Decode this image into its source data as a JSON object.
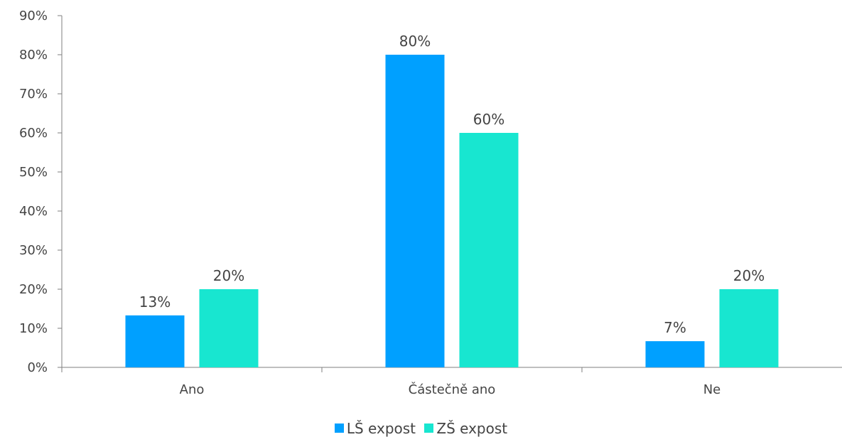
{
  "chart_data": {
    "type": "bar",
    "categories": [
      "Ano",
      "Částečně ano",
      "Ne"
    ],
    "series": [
      {
        "name": "LŠ expost",
        "values": [
          13.3,
          80,
          6.7
        ],
        "labels": [
          "13%",
          "80%",
          "7%"
        ],
        "color": "#00a0ff"
      },
      {
        "name": "ZŠ expost",
        "values": [
          20,
          60,
          20
        ],
        "labels": [
          "20%",
          "60%",
          "20%"
        ],
        "color": "#18e6d0"
      }
    ],
    "ylim": [
      0,
      90
    ],
    "yticks": [
      "0%",
      "10%",
      "20%",
      "30%",
      "40%",
      "50%",
      "60%",
      "70%",
      "80%",
      "90%"
    ],
    "grid": false,
    "legend_position": "bottom"
  }
}
